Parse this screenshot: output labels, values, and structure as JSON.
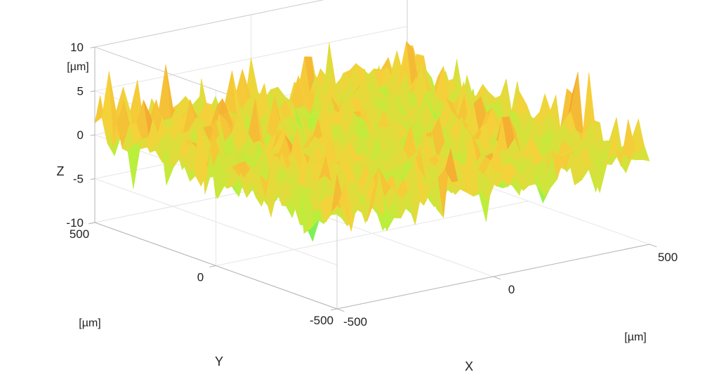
{
  "chart_data": {
    "type": "surface",
    "title": "",
    "x_axis": {
      "label": "X",
      "unit": "[µm]",
      "range": [
        -500,
        500
      ],
      "ticks": [
        {
          "value": -500,
          "label": "-500"
        },
        {
          "value": 0,
          "label": "0"
        },
        {
          "value": 500,
          "label": "500"
        }
      ]
    },
    "y_axis": {
      "label": "Y",
      "unit": "[µm]",
      "range": [
        -500,
        500
      ],
      "ticks": [
        {
          "value": -500,
          "label": "-500"
        },
        {
          "value": 0,
          "label": "0"
        },
        {
          "value": 500,
          "label": "500"
        }
      ]
    },
    "z_axis": {
      "label": "Z",
      "unit": "[µm]",
      "range": [
        -10,
        10
      ],
      "ticks": [
        {
          "value": -10,
          "label": "-10"
        },
        {
          "value": -5,
          "label": "-5"
        },
        {
          "value": 0,
          "label": "0"
        },
        {
          "value": 5,
          "label": "5"
        },
        {
          "value": 10,
          "label": "10"
        }
      ]
    },
    "surface": {
      "description_values": "random rough surface heights",
      "z_min_approx": -9,
      "z_max_approx": 9,
      "colormap": [
        "#3b6fe0",
        "#1ec6d8",
        "#3ef07a",
        "#b8f03c",
        "#f5d23a",
        "#f59a2e",
        "#e2571a",
        "#c0300c"
      ]
    },
    "grid": true,
    "box": true
  }
}
